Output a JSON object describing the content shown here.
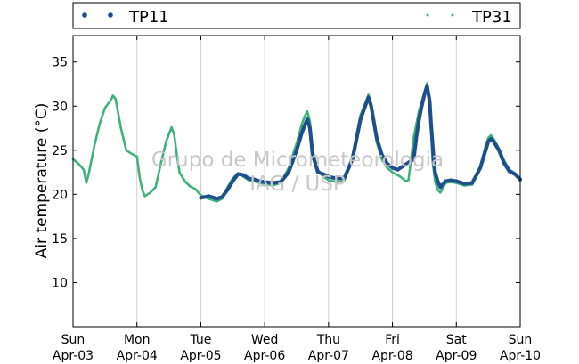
{
  "watermark": {
    "line1": "Grupo de Micrometeorologia",
    "line2": "IAG / USP"
  },
  "colors": {
    "TP11": "#1f4e8c",
    "TP31": "#3fb07a",
    "grid": "#cfcfcf"
  },
  "chart_data": {
    "type": "scatter",
    "ylabel": "Air temperature (°C)",
    "xlabel": "",
    "ylim": [
      5,
      38
    ],
    "yticks": [
      10,
      15,
      20,
      25,
      30,
      35
    ],
    "xlim": [
      "2016-04-03T00:00",
      "2016-04-10T00:00"
    ],
    "xticks": [
      {
        "time": "2016-04-03T00:00",
        "day": "Sun",
        "date": "Apr-03"
      },
      {
        "time": "2016-04-04T00:00",
        "day": "Mon",
        "date": "Apr-04"
      },
      {
        "time": "2016-04-05T00:00",
        "day": "Tue",
        "date": "Apr-05"
      },
      {
        "time": "2016-04-06T00:00",
        "day": "Wed",
        "date": "Apr-06"
      },
      {
        "time": "2016-04-07T00:00",
        "day": "Thu",
        "date": "Apr-07"
      },
      {
        "time": "2016-04-08T00:00",
        "day": "Fri",
        "date": "Apr-08"
      },
      {
        "time": "2016-04-09T00:00",
        "day": "Sat",
        "date": "Apr-09"
      },
      {
        "time": "2016-04-10T00:00",
        "day": "Sun",
        "date": "Apr-10"
      }
    ],
    "grid": "vertical",
    "legend": "top, outside plot, spanning width",
    "series": [
      {
        "name": "TP11",
        "marker": "large dots",
        "points": [
          [
            "2016-04-05T00:00",
            19.6
          ],
          [
            "2016-04-05T03:00",
            19.8
          ],
          [
            "2016-04-05T06:00",
            19.5
          ],
          [
            "2016-04-05T08:00",
            19.7
          ],
          [
            "2016-04-05T10:00",
            20.5
          ],
          [
            "2016-04-05T12:00",
            21.5
          ],
          [
            "2016-04-05T14:00",
            22.3
          ],
          [
            "2016-04-05T16:00",
            22.2
          ],
          [
            "2016-04-05T18:00",
            21.8
          ],
          [
            "2016-04-05T20:00",
            21.7
          ],
          [
            "2016-04-05T22:00",
            21.5
          ],
          [
            "2016-04-06T00:00",
            21.4
          ],
          [
            "2016-04-06T03:00",
            21.3
          ],
          [
            "2016-04-06T06:00",
            21.4
          ],
          [
            "2016-04-06T09:00",
            22.5
          ],
          [
            "2016-04-06T12:00",
            25.0
          ],
          [
            "2016-04-06T14:00",
            27.0
          ],
          [
            "2016-04-06T15:00",
            27.8
          ],
          [
            "2016-04-06T16:00",
            28.5
          ],
          [
            "2016-04-06T17:00",
            27.5
          ],
          [
            "2016-04-06T18:00",
            24.5
          ],
          [
            "2016-04-06T20:00",
            22.5
          ],
          [
            "2016-04-06T22:00",
            22.3
          ],
          [
            "2016-04-07T00:00",
            22.0
          ],
          [
            "2016-04-07T03:00",
            21.8
          ],
          [
            "2016-04-07T06:00",
            21.9
          ],
          [
            "2016-04-07T09:00",
            24.0
          ],
          [
            "2016-04-07T12:00",
            28.5
          ],
          [
            "2016-04-07T14:00",
            30.2
          ],
          [
            "2016-04-07T15:00",
            31.0
          ],
          [
            "2016-04-07T16:00",
            30.0
          ],
          [
            "2016-04-07T18:00",
            26.5
          ],
          [
            "2016-04-07T20:00",
            24.5
          ],
          [
            "2016-04-07T22:00",
            23.5
          ],
          [
            "2016-04-08T00:00",
            23.0
          ],
          [
            "2016-04-08T02:00",
            22.8
          ],
          [
            "2016-04-08T08:00",
            24.0
          ],
          [
            "2016-04-08T09:00",
            26.5
          ],
          [
            "2016-04-08T10:00",
            28.5
          ],
          [
            "2016-04-08T11:00",
            30.0
          ],
          [
            "2016-04-08T12:00",
            31.3
          ],
          [
            "2016-04-08T13:00",
            32.3
          ],
          [
            "2016-04-08T14:00",
            30.5
          ],
          [
            "2016-04-08T14:30",
            28.0
          ],
          [
            "2016-04-08T15:00",
            26.0
          ],
          [
            "2016-04-08T15:30",
            24.0
          ],
          [
            "2016-04-08T16:00",
            22.5
          ],
          [
            "2016-04-08T17:00",
            21.5
          ],
          [
            "2016-04-08T18:00",
            20.8
          ],
          [
            "2016-04-08T20:00",
            21.5
          ],
          [
            "2016-04-08T22:00",
            21.6
          ],
          [
            "2016-04-09T00:00",
            21.5
          ],
          [
            "2016-04-09T03:00",
            21.2
          ],
          [
            "2016-04-09T06:00",
            21.3
          ],
          [
            "2016-04-09T09:00",
            23.0
          ],
          [
            "2016-04-09T11:00",
            25.0
          ],
          [
            "2016-04-09T12:00",
            26.0
          ],
          [
            "2016-04-09T13:00",
            26.3
          ],
          [
            "2016-04-09T14:00",
            26.0
          ],
          [
            "2016-04-09T16:00",
            25.0
          ],
          [
            "2016-04-09T18:00",
            23.5
          ],
          [
            "2016-04-09T20:00",
            22.6
          ],
          [
            "2016-04-09T22:00",
            22.3
          ],
          [
            "2016-04-10T00:00",
            21.7
          ]
        ]
      },
      {
        "name": "TP31",
        "marker": "small dots",
        "points": [
          [
            "2016-04-03T00:00",
            24.0
          ],
          [
            "2016-04-03T02:00",
            23.5
          ],
          [
            "2016-04-03T04:00",
            22.8
          ],
          [
            "2016-04-03T05:00",
            21.3
          ],
          [
            "2016-04-03T06:00",
            22.5
          ],
          [
            "2016-04-03T08:00",
            25.5
          ],
          [
            "2016-04-03T10:00",
            28.0
          ],
          [
            "2016-04-03T12:00",
            29.8
          ],
          [
            "2016-04-03T14:00",
            30.6
          ],
          [
            "2016-04-03T15:00",
            31.2
          ],
          [
            "2016-04-03T16:00",
            30.8
          ],
          [
            "2016-04-03T18:00",
            27.5
          ],
          [
            "2016-04-03T20:00",
            25.0
          ],
          [
            "2016-04-03T22:00",
            24.6
          ],
          [
            "2016-04-04T00:00",
            24.3
          ],
          [
            "2016-04-04T01:00",
            22.0
          ],
          [
            "2016-04-04T02:00",
            20.5
          ],
          [
            "2016-04-04T03:00",
            19.8
          ],
          [
            "2016-04-04T05:00",
            20.2
          ],
          [
            "2016-04-04T07:00",
            20.8
          ],
          [
            "2016-04-04T09:00",
            23.5
          ],
          [
            "2016-04-04T11:00",
            26.0
          ],
          [
            "2016-04-04T13:00",
            27.6
          ],
          [
            "2016-04-04T14:00",
            26.8
          ],
          [
            "2016-04-04T15:00",
            24.5
          ],
          [
            "2016-04-04T16:00",
            22.5
          ],
          [
            "2016-04-04T18:00",
            21.5
          ],
          [
            "2016-04-04T20:00",
            20.9
          ],
          [
            "2016-04-04T22:00",
            20.6
          ],
          [
            "2016-04-05T00:00",
            19.9
          ],
          [
            "2016-04-05T03:00",
            19.5
          ],
          [
            "2016-04-05T06:00",
            19.2
          ],
          [
            "2016-04-05T08:00",
            19.5
          ],
          [
            "2016-04-05T10:00",
            20.8
          ],
          [
            "2016-04-05T12:00",
            21.8
          ],
          [
            "2016-04-05T14:00",
            22.4
          ],
          [
            "2016-04-05T16:00",
            22.0
          ],
          [
            "2016-04-05T18:00",
            21.6
          ],
          [
            "2016-04-05T20:00",
            21.5
          ],
          [
            "2016-04-05T22:00",
            21.3
          ],
          [
            "2016-04-06T00:00",
            21.2
          ],
          [
            "2016-04-06T03:00",
            21.0
          ],
          [
            "2016-04-06T06:00",
            21.3
          ],
          [
            "2016-04-06T09:00",
            23.0
          ],
          [
            "2016-04-06T12:00",
            25.8
          ],
          [
            "2016-04-06T14:00",
            28.0
          ],
          [
            "2016-04-06T15:00",
            28.8
          ],
          [
            "2016-04-06T16:00",
            29.4
          ],
          [
            "2016-04-06T17:00",
            28.3
          ],
          [
            "2016-04-06T18:00",
            25.0
          ],
          [
            "2016-04-06T20:00",
            22.8
          ],
          [
            "2016-04-06T22:00",
            22.0
          ],
          [
            "2016-04-07T00:00",
            21.6
          ],
          [
            "2016-04-07T03:00",
            21.4
          ],
          [
            "2016-04-07T06:00",
            21.6
          ],
          [
            "2016-04-07T09:00",
            24.5
          ],
          [
            "2016-04-07T12:00",
            29.0
          ],
          [
            "2016-04-07T14:00",
            30.5
          ],
          [
            "2016-04-07T15:00",
            31.3
          ],
          [
            "2016-04-07T16:00",
            30.2
          ],
          [
            "2016-04-07T18:00",
            26.0
          ],
          [
            "2016-04-07T20:00",
            24.0
          ],
          [
            "2016-04-07T22:00",
            23.0
          ],
          [
            "2016-04-08T00:00",
            22.5
          ],
          [
            "2016-04-08T03:00",
            22.0
          ],
          [
            "2016-04-08T05:00",
            21.5
          ],
          [
            "2016-04-08T06:00",
            21.6
          ],
          [
            "2016-04-08T07:00",
            24.0
          ],
          [
            "2016-04-08T08:00",
            26.5
          ],
          [
            "2016-04-08T10:00",
            29.5
          ],
          [
            "2016-04-08T12:00",
            31.5
          ],
          [
            "2016-04-08T13:00",
            32.6
          ],
          [
            "2016-04-08T14:00",
            31.0
          ],
          [
            "2016-04-08T15:00",
            24.0
          ],
          [
            "2016-04-08T16:00",
            21.5
          ],
          [
            "2016-04-08T17:00",
            20.5
          ],
          [
            "2016-04-08T18:00",
            20.2
          ],
          [
            "2016-04-08T20:00",
            21.3
          ],
          [
            "2016-04-08T22:00",
            21.4
          ],
          [
            "2016-04-09T00:00",
            21.3
          ],
          [
            "2016-04-09T03:00",
            21.0
          ],
          [
            "2016-04-09T06:00",
            21.1
          ],
          [
            "2016-04-09T09:00",
            23.2
          ],
          [
            "2016-04-09T11:00",
            25.5
          ],
          [
            "2016-04-09T12:00",
            26.4
          ],
          [
            "2016-04-09T13:00",
            26.7
          ],
          [
            "2016-04-09T14:00",
            26.3
          ],
          [
            "2016-04-09T16:00",
            25.2
          ],
          [
            "2016-04-09T18:00",
            23.8
          ],
          [
            "2016-04-09T20:00",
            22.8
          ],
          [
            "2016-04-09T22:00",
            22.4
          ],
          [
            "2016-04-10T00:00",
            21.5
          ]
        ]
      }
    ]
  }
}
